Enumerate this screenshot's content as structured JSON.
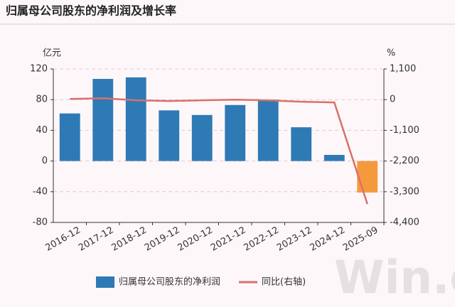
{
  "chart_data": {
    "type": "bar_line",
    "title": "归属母公司股东的净利润及增长率",
    "y_unit": "亿元",
    "y2_unit": "%",
    "watermark": "Win.d",
    "categories": [
      "2016-12",
      "2017-12",
      "2018-12",
      "2019-12",
      "2020-12",
      "2021-12",
      "2022-12",
      "2023-12",
      "2024-12",
      "2025-09"
    ],
    "series": [
      {
        "name": "归属母公司股东的净利润",
        "type": "bar",
        "color": "#2e7ab5",
        "bar_colors": [
          "#2e7ab5",
          "#2e7ab5",
          "#2e7ab5",
          "#2e7ab5",
          "#2e7ab5",
          "#2e7ab5",
          "#2e7ab5",
          "#2e7ab5",
          "#2e7ab5",
          "#f59a3c"
        ],
        "values": [
          62,
          107,
          109,
          66,
          60,
          73,
          80,
          44,
          8,
          -41
        ]
      },
      {
        "name": "同比(右轴)",
        "type": "line",
        "axis": "y2",
        "color": "#d9706a",
        "values": [
          25,
          50,
          -25,
          -50,
          -25,
          0,
          -25,
          -75,
          -100,
          -3740
        ]
      }
    ],
    "ylim": [
      -80,
      120
    ],
    "yticks": [
      -80,
      -40,
      0,
      40,
      80,
      120
    ],
    "y2lim": [
      -4400,
      1100
    ],
    "y2ticks": [
      {
        "value": -4400,
        "label": "-4,400"
      },
      {
        "value": -3300,
        "label": "-3,300"
      },
      {
        "value": -2200,
        "label": "-2,200"
      },
      {
        "value": -1100,
        "label": "-1,100"
      },
      0,
      {
        "value": 1100,
        "label": "1,100"
      }
    ],
    "grid": true
  }
}
